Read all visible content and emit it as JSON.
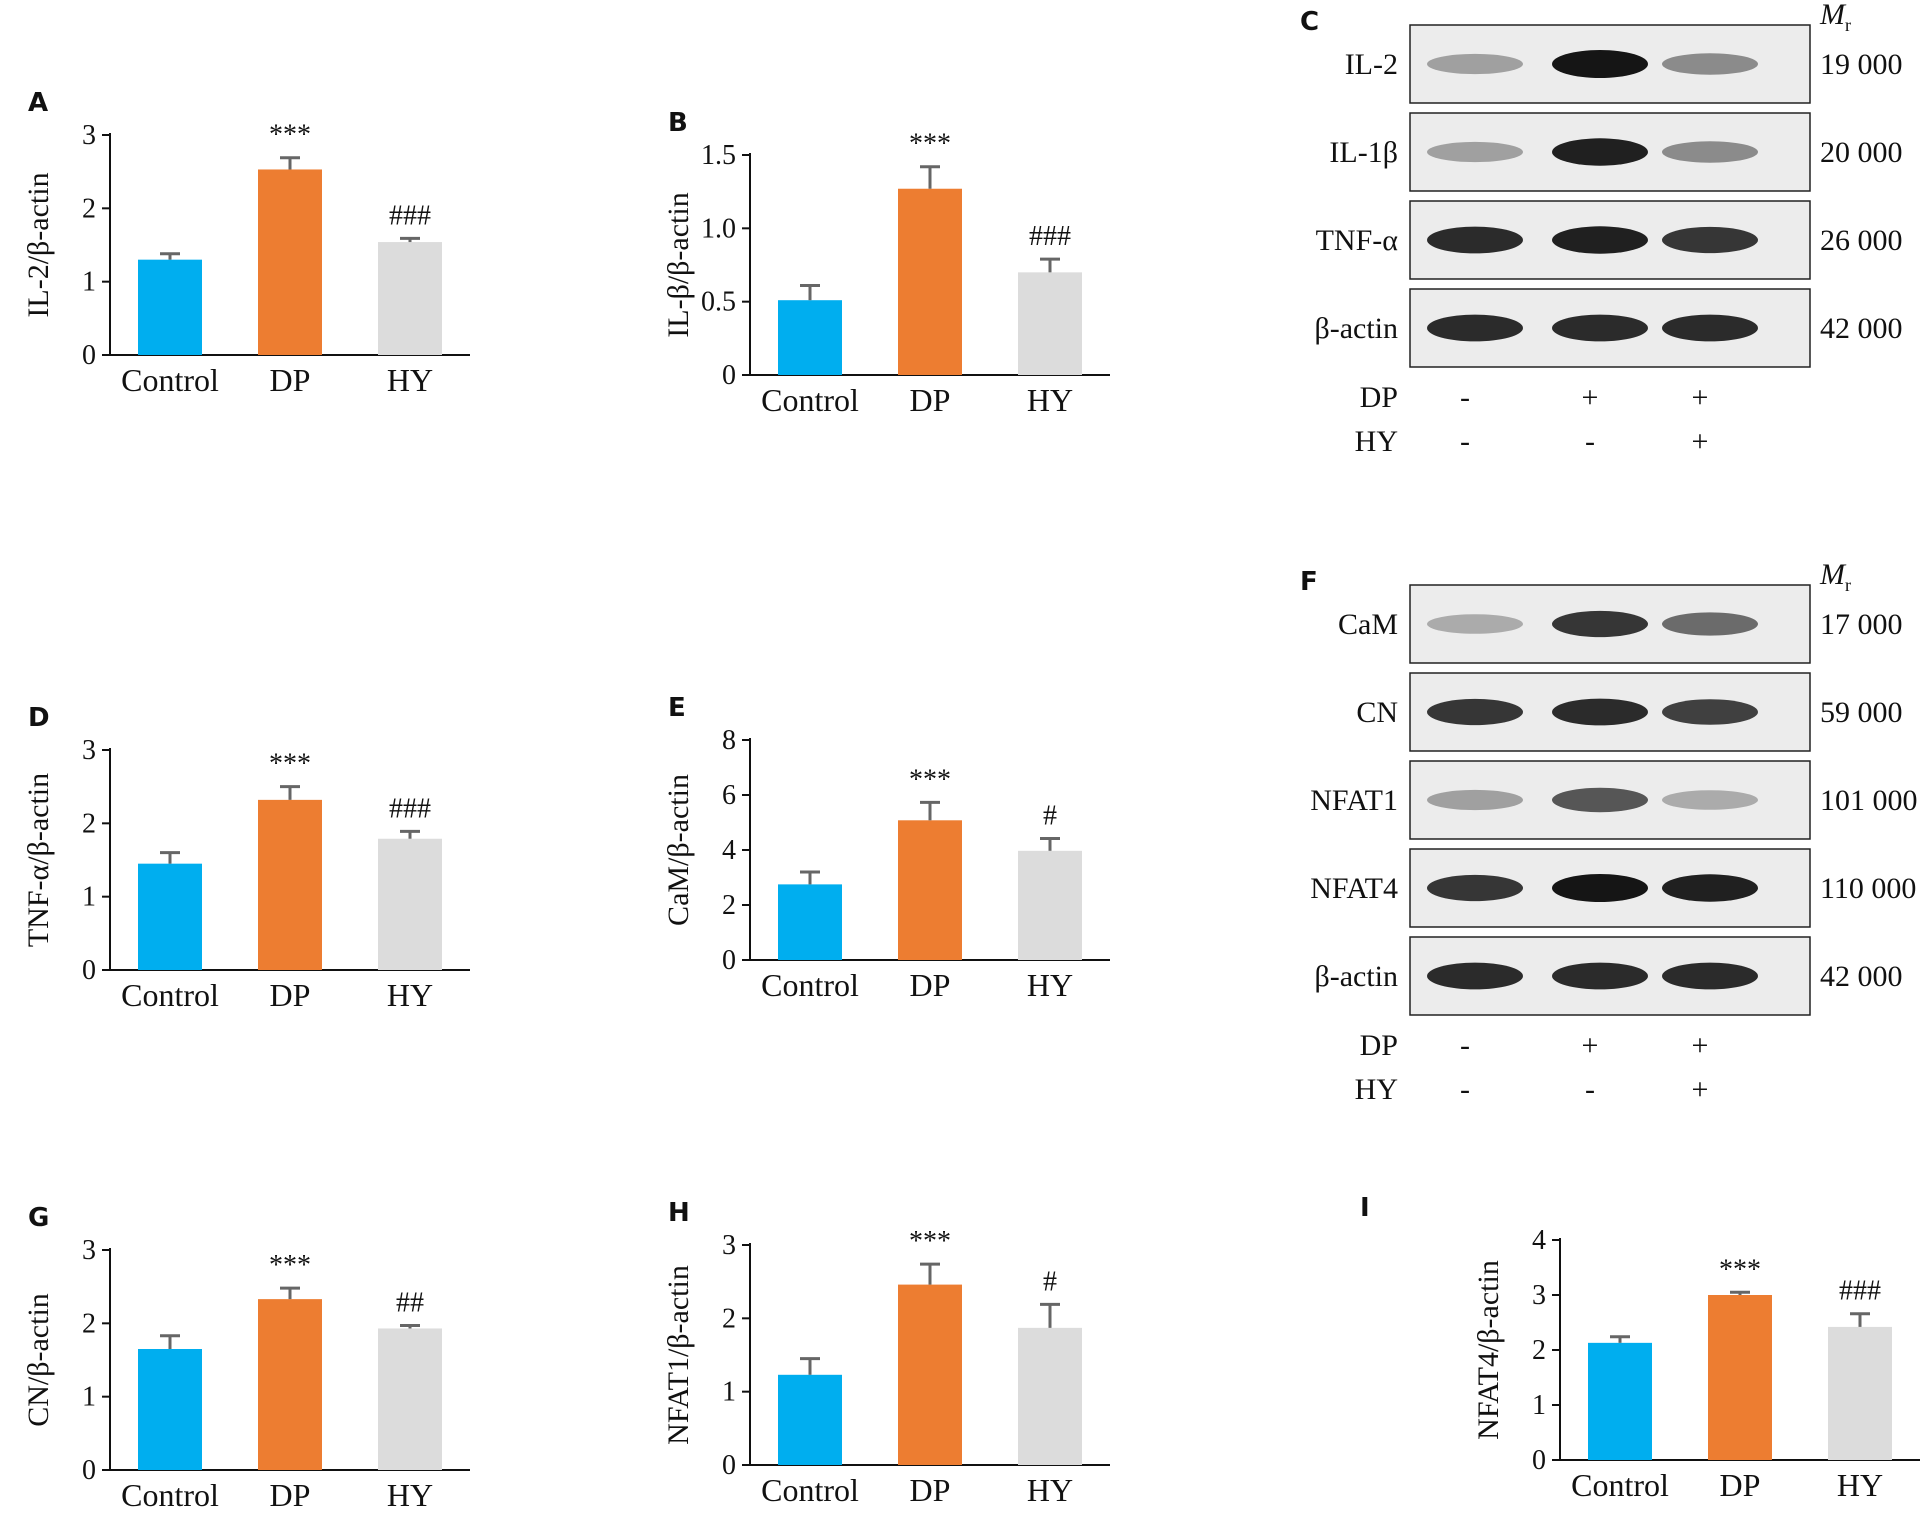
{
  "chart_data": [
    {
      "id": "A",
      "letter": "A",
      "type": "bar",
      "categories": [
        "Control",
        "DP",
        "HY"
      ],
      "values": [
        1.3,
        2.53,
        1.54
      ],
      "errors": [
        0.08,
        0.16,
        0.05
      ],
      "significance": [
        "",
        "***",
        "###"
      ],
      "ylabel": "IL-2/β-actin",
      "ylim": [
        0,
        3
      ],
      "yticks": [
        "0",
        "1",
        "2",
        "3"
      ],
      "colors": [
        "#00aeef",
        "#ed7d31",
        "#dcdcdc"
      ]
    },
    {
      "id": "B",
      "letter": "B",
      "type": "bar",
      "categories": [
        "Control",
        "DP",
        "HY"
      ],
      "values": [
        0.51,
        1.27,
        0.7
      ],
      "errors": [
        0.1,
        0.15,
        0.09
      ],
      "significance": [
        "",
        "***",
        "###"
      ],
      "ylabel": "IL-β/β-actin",
      "ylim": [
        0,
        1.5
      ],
      "yticks": [
        "0",
        "0.5",
        "1.0",
        "1.5"
      ],
      "colors": [
        "#00aeef",
        "#ed7d31",
        "#dcdcdc"
      ]
    },
    {
      "id": "D",
      "letter": "D",
      "type": "bar",
      "categories": [
        "Control",
        "DP",
        "HY"
      ],
      "values": [
        1.45,
        2.32,
        1.79
      ],
      "errors": [
        0.15,
        0.18,
        0.1
      ],
      "significance": [
        "",
        "***",
        "###"
      ],
      "ylabel": "TNF-α/β-actin",
      "ylim": [
        0,
        3
      ],
      "yticks": [
        "0",
        "1",
        "2",
        "3"
      ],
      "colors": [
        "#00aeef",
        "#ed7d31",
        "#dcdcdc"
      ]
    },
    {
      "id": "E",
      "letter": "E",
      "type": "bar",
      "categories": [
        "Control",
        "DP",
        "HY"
      ],
      "values": [
        2.75,
        5.08,
        3.97
      ],
      "errors": [
        0.45,
        0.65,
        0.45
      ],
      "significance": [
        "",
        "***",
        "#"
      ],
      "ylabel": "CaM/β-actin",
      "ylim": [
        0,
        8
      ],
      "yticks": [
        "0",
        "2",
        "4",
        "6",
        "8"
      ],
      "colors": [
        "#00aeef",
        "#ed7d31",
        "#dcdcdc"
      ]
    },
    {
      "id": "G",
      "letter": "G",
      "type": "bar",
      "categories": [
        "Control",
        "DP",
        "HY"
      ],
      "values": [
        1.65,
        2.33,
        1.93
      ],
      "errors": [
        0.18,
        0.15,
        0.04
      ],
      "significance": [
        "",
        "***",
        "##"
      ],
      "ylabel": "CN/β-actin",
      "ylim": [
        0,
        3
      ],
      "yticks": [
        "0",
        "1",
        "2",
        "3"
      ],
      "colors": [
        "#00aeef",
        "#ed7d31",
        "#dcdcdc"
      ]
    },
    {
      "id": "H",
      "letter": "H",
      "type": "bar",
      "categories": [
        "Control",
        "DP",
        "HY"
      ],
      "values": [
        1.23,
        2.46,
        1.87
      ],
      "errors": [
        0.22,
        0.28,
        0.32
      ],
      "significance": [
        "",
        "***",
        "#"
      ],
      "ylabel": "NFAT1/β-actin",
      "ylim": [
        0,
        3
      ],
      "yticks": [
        "0",
        "1",
        "2",
        "3"
      ],
      "colors": [
        "#00aeef",
        "#ed7d31",
        "#dcdcdc"
      ]
    },
    {
      "id": "I",
      "letter": "I",
      "type": "bar",
      "categories": [
        "Control",
        "DP",
        "HY"
      ],
      "values": [
        2.13,
        3.0,
        2.42
      ],
      "errors": [
        0.11,
        0.05,
        0.24
      ],
      "significance": [
        "",
        "***",
        "###"
      ],
      "ylabel": "NFAT4/β-actin",
      "ylim": [
        0,
        4
      ],
      "yticks": [
        "0",
        "1",
        "2",
        "3",
        "4"
      ],
      "colors": [
        "#00aeef",
        "#ed7d31",
        "#dcdcdc"
      ]
    }
  ],
  "blots": [
    {
      "id": "C",
      "letter": "C",
      "mr_symbol": "M",
      "mr_sub": "r",
      "rows": [
        {
          "label": "IL-2",
          "mw": "19 000",
          "intensity": [
            0.35,
            1.0,
            0.45
          ]
        },
        {
          "label": "IL-1β",
          "mw": "20 000",
          "intensity": [
            0.35,
            0.95,
            0.45
          ]
        },
        {
          "label": "TNF-α",
          "mw": "26 000",
          "intensity": [
            0.9,
            0.95,
            0.85
          ]
        },
        {
          "label": "β-actin",
          "mw": "42 000",
          "intensity": [
            0.9,
            0.9,
            0.9
          ]
        }
      ],
      "treatments": [
        {
          "name": "DP",
          "marks": [
            "-",
            "+",
            "+"
          ]
        },
        {
          "name": "HY",
          "marks": [
            "-",
            "-",
            "+"
          ]
        }
      ]
    },
    {
      "id": "F",
      "letter": "F",
      "mr_symbol": "M",
      "mr_sub": "r",
      "rows": [
        {
          "label": "CaM",
          "mw": "17 000",
          "intensity": [
            0.3,
            0.85,
            0.6
          ]
        },
        {
          "label": "CN",
          "mw": "59 000",
          "intensity": [
            0.85,
            0.9,
            0.8
          ]
        },
        {
          "label": "NFAT1",
          "mw": "101 000",
          "intensity": [
            0.35,
            0.7,
            0.3
          ]
        },
        {
          "label": "NFAT4",
          "mw": "110 000",
          "intensity": [
            0.85,
            1.0,
            0.95
          ]
        },
        {
          "label": "β-actin",
          "mw": "42 000",
          "intensity": [
            0.9,
            0.9,
            0.9
          ]
        }
      ],
      "treatments": [
        {
          "name": "DP",
          "marks": [
            "-",
            "+",
            "+"
          ]
        },
        {
          "name": "HY",
          "marks": [
            "-",
            "-",
            "+"
          ]
        }
      ]
    }
  ]
}
